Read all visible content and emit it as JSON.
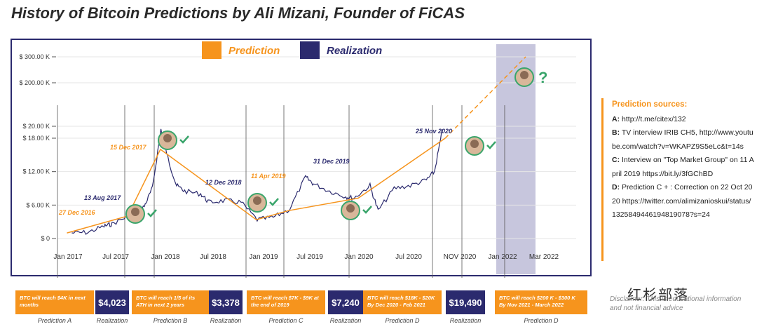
{
  "title": "History of Bitcoin Predictions by Ali Mizani, Founder of FiCAS",
  "chart_data": {
    "type": "line",
    "legend": [
      {
        "name": "Prediction",
        "color": "#f6941d"
      },
      {
        "name": "Realization",
        "color": "#2b2a6e"
      }
    ],
    "legend_position": "top-center",
    "y_ticks": [
      "$ 0",
      "$ 6.00 K",
      "$ 12.00 K",
      "$ 18.00 K",
      "$ 20.00 K",
      "$ 200.00 K",
      "$ 300.00 K"
    ],
    "x_ticks": [
      "Jan 2017",
      "Jul 2017",
      "Jan 2018",
      "Jul 2018",
      "Jan 2019",
      "Jul 2019",
      "Jan 2020",
      "Jul 2020",
      "NOV 2020",
      "Jan 2022",
      "Mar 2022"
    ],
    "shaded_range": [
      "Nov 2021",
      "Mar 2022"
    ],
    "price_series": {
      "name": "BTC price",
      "points": [
        [
          "2017-01",
          1000
        ],
        [
          "2017-03",
          1100
        ],
        [
          "2017-05",
          2200
        ],
        [
          "2017-06",
          2600
        ],
        [
          "2017-08",
          4023
        ],
        [
          "2017-09",
          4300
        ],
        [
          "2017-10",
          5800
        ],
        [
          "2017-11",
          9000
        ],
        [
          "2017-12-17",
          19500
        ],
        [
          "2018-01",
          14000
        ],
        [
          "2018-02",
          9500
        ],
        [
          "2018-03",
          8500
        ],
        [
          "2018-05",
          8000
        ],
        [
          "2018-06",
          6500
        ],
        [
          "2018-08",
          6800
        ],
        [
          "2018-10",
          6500
        ],
        [
          "2018-12",
          3378
        ],
        [
          "2019-02",
          3800
        ],
        [
          "2019-04",
          5200
        ],
        [
          "2019-06",
          11000
        ],
        [
          "2019-07",
          9800
        ],
        [
          "2019-09",
          8500
        ],
        [
          "2019-11",
          7500
        ],
        [
          "2019-12",
          7240
        ],
        [
          "2020-02",
          9500
        ],
        [
          "2020-03",
          5000
        ],
        [
          "2020-05",
          9000
        ],
        [
          "2020-07",
          9500
        ],
        [
          "2020-09",
          10500
        ],
        [
          "2020-10",
          12000
        ],
        [
          "2020-11",
          19490
        ]
      ]
    },
    "prediction_series": {
      "name": "Prediction",
      "points": [
        [
          "2016-12-27",
          1000
        ],
        [
          "2017-08-13",
          4023
        ],
        [
          "2017-12-15",
          16000
        ],
        [
          "2018-12-12",
          3378
        ],
        [
          "2019-04-11",
          5000
        ],
        [
          "2019-12-31",
          7240
        ],
        [
          "2020-11-25",
          18000
        ],
        [
          "2022-03",
          300000
        ]
      ]
    },
    "annotations": [
      {
        "text": "27 Dec 2016",
        "color": "#f6941d"
      },
      {
        "text": "13 Aug 2017",
        "color": "#2b2a6e"
      },
      {
        "text": "15 Dec 2017",
        "color": "#f6941d"
      },
      {
        "text": "12 Dec 2018",
        "color": "#2b2a6e"
      },
      {
        "text": "11 Apr 2019",
        "color": "#f6941d"
      },
      {
        "text": "31 Dec 2019",
        "color": "#2b2a6e"
      },
      {
        "text": "25 Nov 2020",
        "color": "#2b2a6e"
      }
    ],
    "question_mark": "?"
  },
  "sources": {
    "heading": "Prediction sources:",
    "lines": [
      {
        "key": "A:",
        "text": "http://t.me/citex/132"
      },
      {
        "key": "B:",
        "text": "TV interview IRIB CH5, http://www.youtube.com/watch?v=WKAPZ9S5eLc&t=14s"
      },
      {
        "key": "C:",
        "text": "Interview on \"Top Market Group\" on 11 April 2019 https://bit.ly/3fGChBD"
      },
      {
        "key": "D:",
        "text": "Prediction C + : Correction on 22 Oct 2020 https://twitter.com/alimizanioskui/status/1325849446194819078?s=24"
      }
    ]
  },
  "boxes": [
    {
      "kind": "pred",
      "text": "BTC will reach $4K in next months",
      "caption": "Prediction A"
    },
    {
      "kind": "real",
      "text": "$4,023",
      "caption": "Realization"
    },
    {
      "kind": "pred",
      "text": "BTC will reach 1/5 of its ATH in next 2 years",
      "caption": "Prediction B"
    },
    {
      "kind": "real",
      "text": "$3,378",
      "caption": "Realization"
    },
    {
      "kind": "pred",
      "text": "BTC will reach $7K - $9K at the end of 2019",
      "caption": "Prediction C"
    },
    {
      "kind": "real",
      "text": "$7,240",
      "caption": "Realization"
    },
    {
      "kind": "pred",
      "text": "BTC will reach $18K - $20K By Dec 2020 - Feb 2021",
      "caption": "Prediction D"
    },
    {
      "kind": "real",
      "text": "$19,490",
      "caption": "Realization"
    },
    {
      "kind": "pred",
      "text": "BTC will reach $200 K - $300 K By Nov 2021 - March 2022",
      "caption": "Prediction D"
    }
  ],
  "disclaimer": "Disclaimer: This is educational information and not financial advice",
  "watermark": "红杉部落"
}
